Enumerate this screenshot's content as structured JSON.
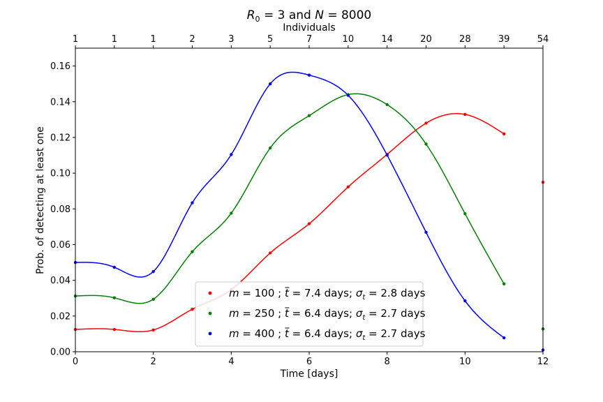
{
  "chart_data": {
    "type": "scatter",
    "title_parts": [
      "R",
      "0",
      " = 3 and ",
      "N",
      " = 8000"
    ],
    "xlabel": "Time [days]",
    "ylabel": "Prob. of detecting at least one",
    "top_xlabel": "Individuals",
    "xlim": [
      0,
      12
    ],
    "ylim": [
      0,
      0.17
    ],
    "x_ticks": [
      0,
      2,
      4,
      6,
      8,
      10,
      12
    ],
    "x_tick_labels": [
      "0",
      "2",
      "4",
      "6",
      "8",
      "10",
      "12"
    ],
    "y_ticks": [
      0,
      0.02,
      0.04,
      0.06,
      0.08,
      0.1,
      0.12,
      0.14,
      0.16
    ],
    "y_tick_labels": [
      "0.00",
      "0.02",
      "0.04",
      "0.06",
      "0.08",
      "0.10",
      "0.12",
      "0.14",
      "0.16"
    ],
    "top_ticks": [
      0,
      1,
      2,
      3,
      4,
      5,
      6,
      7,
      8,
      9,
      10,
      11,
      12
    ],
    "top_tick_labels": [
      "1",
      "1",
      "1",
      "2",
      "3",
      "5",
      "7",
      "10",
      "14",
      "20",
      "28",
      "39",
      "54"
    ],
    "grid": false,
    "legend_position": "lower-center",
    "series": [
      {
        "legend": [
          "m",
          " = 100 ; ",
          "t",
          " = 7.4 days; ",
          "σ",
          "t",
          " = 2.8 days"
        ],
        "color": "#ff0000",
        "x": [
          0,
          1,
          2,
          3,
          4,
          5,
          6,
          7,
          8,
          9,
          10,
          11,
          12
        ],
        "y": [
          0.0125,
          0.0125,
          0.0122,
          0.0238,
          0.0348,
          0.0553,
          0.0717,
          0.0923,
          0.1105,
          0.128,
          0.1329,
          0.122,
          0.0949
        ]
      },
      {
        "legend": [
          "m",
          " = 250 ; ",
          "t",
          " = 6.4 days; ",
          "σ",
          "t",
          " = 2.7 days"
        ],
        "color": "#008000",
        "x": [
          0,
          1,
          2,
          3,
          4,
          5,
          6,
          7,
          8,
          9,
          10,
          11,
          12
        ],
        "y": [
          0.0312,
          0.0302,
          0.0294,
          0.056,
          0.0776,
          0.1141,
          0.1322,
          0.144,
          0.1384,
          0.1163,
          0.0773,
          0.038,
          0.0128
        ]
      },
      {
        "legend": [
          "m",
          " = 400 ; ",
          "t",
          " = 6.4 days; ",
          "σ",
          "t",
          " = 2.7 days"
        ],
        "color": "#0000ff",
        "x": [
          0,
          1,
          2,
          3,
          4,
          5,
          6,
          7,
          8,
          9,
          10,
          11,
          12
        ],
        "y": [
          0.05,
          0.0473,
          0.0449,
          0.0834,
          0.1104,
          0.15,
          0.1549,
          0.1436,
          0.1101,
          0.0669,
          0.0285,
          0.0078,
          0.001
        ]
      }
    ]
  }
}
